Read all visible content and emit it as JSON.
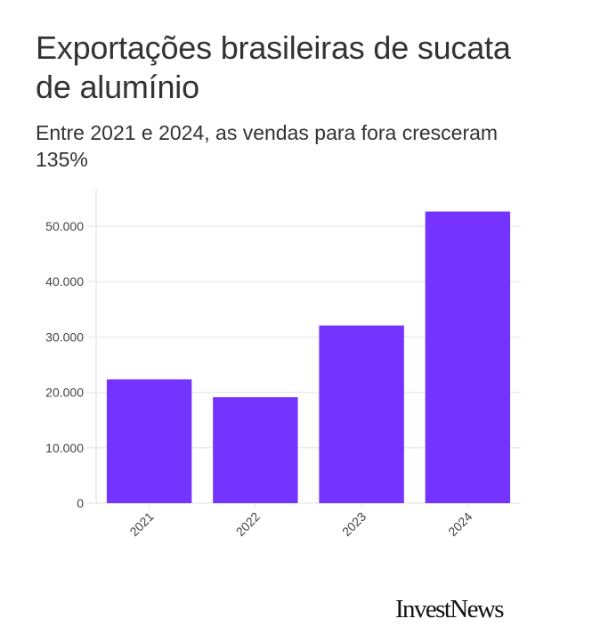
{
  "header": {
    "title": "Exportações brasileiras de sucata de alumínio",
    "subtitle": "Entre 2021 e 2024, as vendas para fora cresceram 135%"
  },
  "footer": {
    "logo_text": "InvestNews"
  },
  "colors": {
    "bar": "#7433ff",
    "grid": "#ececec",
    "text": "#333333"
  },
  "chart_data": {
    "type": "bar",
    "title": "Exportações brasileiras de sucata de alumínio",
    "subtitle": "Entre 2021 e 2024, as vendas para fora cresceram 135%",
    "categories": [
      "2021",
      "2022",
      "2023",
      "2024"
    ],
    "values": [
      22350,
      19130,
      32070,
      52650
    ],
    "xlabel": "",
    "ylabel": "",
    "ylim": [
      0,
      55000
    ],
    "yticks": [
      0,
      10000,
      20000,
      30000,
      40000,
      50000
    ],
    "ytick_labels": [
      "0",
      "10.000",
      "20.000",
      "30.000",
      "40.000",
      "50.000"
    ],
    "grid": true,
    "legend": "none",
    "x_tick_rotation_deg": -45
  }
}
